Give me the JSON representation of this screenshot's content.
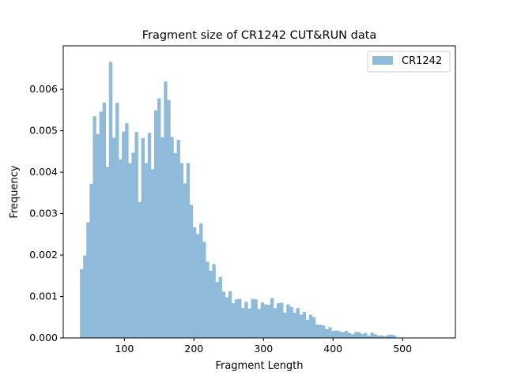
{
  "chart_data": {
    "type": "bar",
    "title": "Fragment size of CR1242 CUT&RUN data",
    "xlabel": "Fragment Length",
    "ylabel": "Frequency",
    "xlim": [
      12,
      576
    ],
    "ylim": [
      0,
      0.00705
    ],
    "xticks": [
      100,
      200,
      300,
      400,
      500
    ],
    "yticks": [
      0.0,
      0.001,
      0.002,
      0.003,
      0.004,
      0.005,
      0.006
    ],
    "ytick_labels": [
      "0.000",
      "0.001",
      "0.002",
      "0.003",
      "0.004",
      "0.005",
      "0.006"
    ],
    "bin_start": 36,
    "bin_width": 4.64,
    "legend": {
      "position": "top-right",
      "label": "CR1242"
    },
    "grid": false,
    "color": "#8fbad9",
    "series": [
      {
        "name": "CR1242",
        "values": [
          0.00166,
          0.00199,
          0.00279,
          0.00372,
          0.00535,
          0.00492,
          0.00546,
          0.00568,
          0.00413,
          0.00666,
          0.00483,
          0.00567,
          0.00431,
          0.00498,
          0.00518,
          0.00421,
          0.00447,
          0.00497,
          0.00328,
          0.00482,
          0.00422,
          0.00495,
          0.00407,
          0.00549,
          0.00578,
          0.00484,
          0.00619,
          0.00574,
          0.00485,
          0.00446,
          0.00478,
          0.00422,
          0.00373,
          0.00422,
          0.00321,
          0.00267,
          0.00251,
          0.00276,
          0.00232,
          0.00184,
          0.00162,
          0.00178,
          0.00135,
          0.00147,
          0.00112,
          0.00098,
          0.00113,
          0.00084,
          0.00093,
          0.00094,
          0.00072,
          0.00087,
          0.00071,
          0.00094,
          0.00093,
          0.0007,
          0.00086,
          0.00081,
          0.0008,
          0.00096,
          0.00072,
          0.00084,
          0.00085,
          0.00061,
          0.00081,
          0.00075,
          0.00061,
          0.00072,
          0.00056,
          0.00063,
          0.00044,
          0.00056,
          0.0005,
          0.00032,
          0.00032,
          0.0003,
          0.00021,
          0.00026,
          0.00017,
          0.00018,
          0.00016,
          0.00014,
          0.00017,
          0.00012,
          9e-05,
          0.00014,
          0.00014,
          0.0001,
          0.00012,
          5e-05,
          0.00013,
          9e-05,
          6e-05,
          6e-05,
          4e-05,
          7e-05,
          8e-05,
          6e-05
        ]
      }
    ]
  }
}
